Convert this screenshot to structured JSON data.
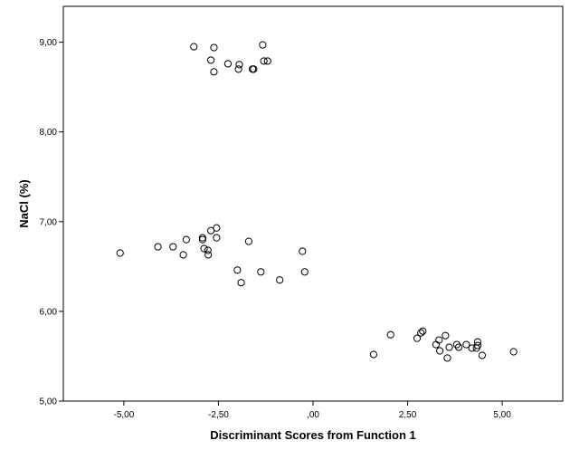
{
  "chart_data": {
    "type": "scatter",
    "title": "",
    "xlabel": "Discriminant Scores from Function 1",
    "ylabel": "NaCl (%)",
    "xlim": [
      -6.6,
      6.6
    ],
    "ylim": [
      5.0,
      9.4
    ],
    "x_ticks": [
      -5,
      -2.5,
      0,
      2.5,
      5
    ],
    "x_tick_labels": [
      "-5,00",
      "-2,50",
      ",00",
      "2,50",
      "5,00"
    ],
    "y_ticks": [
      5,
      6,
      7,
      8,
      9
    ],
    "y_tick_labels": [
      "5,00",
      "6,00",
      "7,00",
      "8,00",
      "9,00"
    ],
    "grid": false,
    "legend": "none",
    "marker": "open-circle",
    "colors": {
      "marker_stroke": "#000000",
      "frame": "#000000",
      "background": "#ffffff"
    },
    "series": [
      {
        "points": [
          [
            -3.15,
            8.95
          ],
          [
            -2.62,
            8.94
          ],
          [
            -1.33,
            8.97
          ],
          [
            -2.7,
            8.8
          ],
          [
            -2.25,
            8.76
          ],
          [
            -1.95,
            8.75
          ],
          [
            -1.3,
            8.79
          ],
          [
            -1.2,
            8.79
          ],
          [
            -2.62,
            8.67
          ],
          [
            -1.97,
            8.7
          ],
          [
            -1.6,
            8.7
          ],
          [
            -1.57,
            8.7
          ],
          [
            -2.55,
            6.93
          ],
          [
            -2.7,
            6.9
          ],
          [
            -3.35,
            6.8
          ],
          [
            -2.92,
            6.82
          ],
          [
            -2.92,
            6.8
          ],
          [
            -2.55,
            6.82
          ],
          [
            -1.7,
            6.78
          ],
          [
            -4.1,
            6.72
          ],
          [
            -3.7,
            6.72
          ],
          [
            -2.88,
            6.7
          ],
          [
            -2.78,
            6.68
          ],
          [
            -0.28,
            6.67
          ],
          [
            -5.1,
            6.65
          ],
          [
            -3.43,
            6.63
          ],
          [
            -2.77,
            6.63
          ],
          [
            -2.0,
            6.46
          ],
          [
            -1.38,
            6.44
          ],
          [
            -0.22,
            6.44
          ],
          [
            -0.88,
            6.35
          ],
          [
            -1.9,
            6.32
          ],
          [
            2.05,
            5.74
          ],
          [
            2.9,
            5.78
          ],
          [
            2.85,
            5.76
          ],
          [
            3.5,
            5.73
          ],
          [
            2.75,
            5.7
          ],
          [
            3.33,
            5.68
          ],
          [
            4.35,
            5.66
          ],
          [
            3.25,
            5.63
          ],
          [
            3.8,
            5.63
          ],
          [
            4.05,
            5.63
          ],
          [
            4.35,
            5.62
          ],
          [
            3.6,
            5.6
          ],
          [
            3.85,
            5.6
          ],
          [
            4.2,
            5.59
          ],
          [
            4.32,
            5.59
          ],
          [
            3.35,
            5.56
          ],
          [
            5.3,
            5.55
          ],
          [
            1.6,
            5.52
          ],
          [
            4.47,
            5.51
          ],
          [
            3.55,
            5.48
          ]
        ]
      }
    ]
  }
}
